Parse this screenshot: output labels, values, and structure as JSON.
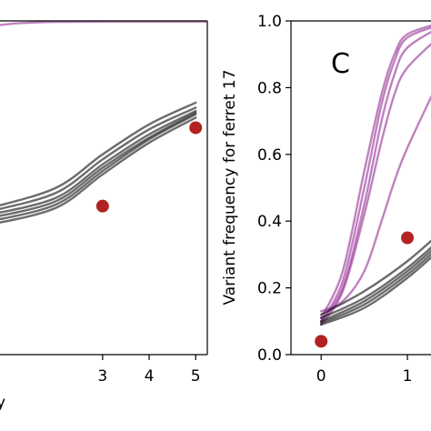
{
  "chart_data": [
    {
      "type": "line",
      "panel": "left (cropped)",
      "title": "",
      "xlabel": "y",
      "ylabel": "",
      "xlim": [
        0.6,
        5.25
      ],
      "ylim": [
        0.0,
        1.0
      ],
      "xticks": [
        "3",
        "4",
        "5"
      ],
      "xtick_values": [
        3,
        4,
        5
      ],
      "grid": false,
      "colors": {
        "purple": "#8b1a8b",
        "black": "#111111",
        "observed": "#b22222"
      },
      "series_groups": [
        {
          "color": "purple",
          "lines": [
            {
              "x": [
                0.6,
                1.2,
                2.0,
                3.0,
                5.25
              ],
              "y": [
                0.985,
                0.993,
                0.997,
                0.998,
                0.998
              ]
            }
          ]
        },
        {
          "color": "black",
          "lines": [
            {
              "x": [
                0.6,
                2.0,
                3.0,
                4.0,
                5.0
              ],
              "y": [
                0.44,
                0.5,
                0.6,
                0.69,
                0.755
              ]
            },
            {
              "x": [
                0.6,
                2.0,
                3.0,
                4.0,
                5.0
              ],
              "y": [
                0.43,
                0.485,
                0.585,
                0.675,
                0.74
              ]
            },
            {
              "x": [
                0.6,
                2.0,
                3.0,
                4.0,
                5.0
              ],
              "y": [
                0.42,
                0.47,
                0.57,
                0.66,
                0.73
              ]
            },
            {
              "x": [
                0.6,
                2.0,
                3.0,
                4.0,
                5.0
              ],
              "y": [
                0.41,
                0.46,
                0.56,
                0.65,
                0.725
              ]
            },
            {
              "x": [
                0.6,
                2.0,
                3.0,
                4.0,
                5.0
              ],
              "y": [
                0.4,
                0.45,
                0.55,
                0.645,
                0.72
              ]
            },
            {
              "x": [
                0.6,
                2.0,
                3.0,
                4.0,
                5.0
              ],
              "y": [
                0.39,
                0.44,
                0.54,
                0.635,
                0.71
              ]
            }
          ]
        }
      ],
      "observed": [
        {
          "x": 3,
          "y": 0.445
        },
        {
          "x": 5,
          "y": 0.68
        }
      ]
    },
    {
      "type": "line",
      "panel": "C",
      "panel_label": "C",
      "title": "",
      "xlabel": "",
      "ylabel": "Variant frequency for ferret 17",
      "xlim": [
        -0.35,
        1.4
      ],
      "ylim": [
        0.0,
        1.0
      ],
      "xticks": [
        "0",
        "1"
      ],
      "xtick_values": [
        0,
        1
      ],
      "yticks": [
        "0.0",
        "0.2",
        "0.4",
        "0.6",
        "0.8",
        "1.0"
      ],
      "ytick_values": [
        0.0,
        0.2,
        0.4,
        0.6,
        0.8,
        1.0
      ],
      "grid": false,
      "colors": {
        "purple": "#8b1a8b",
        "black": "#111111",
        "observed": "#b22222"
      },
      "series_groups": [
        {
          "color": "purple",
          "lines": [
            {
              "x": [
                0,
                0.25,
                0.5,
                0.7,
                0.85,
                1.0,
                1.4
              ],
              "y": [
                0.1,
                0.22,
                0.5,
                0.75,
                0.88,
                0.95,
                0.99
              ]
            },
            {
              "x": [
                0,
                0.25,
                0.5,
                0.7,
                0.85,
                1.0,
                1.4
              ],
              "y": [
                0.1,
                0.2,
                0.45,
                0.7,
                0.84,
                0.92,
                0.985
              ]
            },
            {
              "x": [
                0,
                0.25,
                0.5,
                0.7,
                0.85,
                1.0,
                1.4
              ],
              "y": [
                0.11,
                0.25,
                0.55,
                0.78,
                0.9,
                0.96,
                0.995
              ]
            },
            {
              "x": [
                0,
                0.25,
                0.5,
                0.7,
                0.85,
                1.0,
                1.4
              ],
              "y": [
                0.09,
                0.19,
                0.42,
                0.64,
                0.78,
                0.86,
                0.96
              ]
            },
            {
              "x": [
                0,
                0.25,
                0.5,
                0.7,
                0.85,
                1.0,
                1.4
              ],
              "y": [
                0.13,
                0.16,
                0.25,
                0.4,
                0.52,
                0.62,
                0.84
              ]
            }
          ]
        },
        {
          "color": "black",
          "lines": [
            {
              "x": [
                0,
                0.5,
                1.0,
                1.4
              ],
              "y": [
                0.12,
                0.19,
                0.28,
                0.37
              ]
            },
            {
              "x": [
                0,
                0.5,
                1.0,
                1.4
              ],
              "y": [
                0.11,
                0.17,
                0.26,
                0.35
              ]
            },
            {
              "x": [
                0,
                0.5,
                1.0,
                1.4
              ],
              "y": [
                0.1,
                0.16,
                0.25,
                0.34
              ]
            },
            {
              "x": [
                0,
                0.5,
                1.0,
                1.4
              ],
              "y": [
                0.095,
                0.15,
                0.24,
                0.33
              ]
            },
            {
              "x": [
                0,
                0.5,
                1.0,
                1.4
              ],
              "y": [
                0.09,
                0.14,
                0.23,
                0.32
              ]
            }
          ]
        }
      ],
      "observed": [
        {
          "x": 0,
          "y": 0.04
        },
        {
          "x": 1,
          "y": 0.35
        }
      ]
    }
  ]
}
